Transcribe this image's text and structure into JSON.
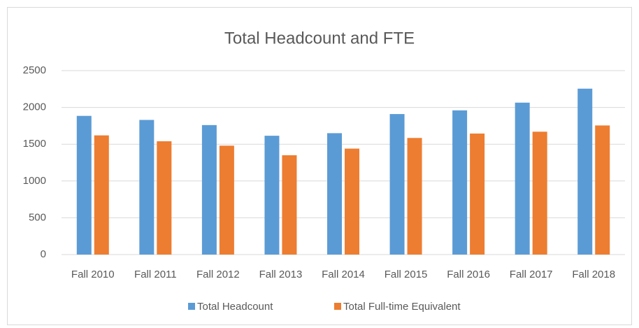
{
  "chart_data": {
    "type": "bar",
    "title": "Total Headcount and FTE",
    "categories": [
      "Fall 2010",
      "Fall 2011",
      "Fall 2012",
      "Fall 2013",
      "Fall 2014",
      "Fall 2015",
      "Fall 2016",
      "Fall 2017",
      "Fall 2018"
    ],
    "series": [
      {
        "name": "Total Headcount",
        "color": "#5b9bd5",
        "values": [
          1885,
          1830,
          1760,
          1615,
          1650,
          1910,
          1960,
          2065,
          2255
        ]
      },
      {
        "name": "Total Full-time Equivalent",
        "color": "#ed7d31",
        "values": [
          1620,
          1540,
          1480,
          1350,
          1440,
          1585,
          1645,
          1670,
          1755
        ]
      }
    ],
    "ylim": [
      0,
      2500
    ],
    "yticks": [
      0,
      500,
      1000,
      1500,
      2000,
      2500
    ],
    "grid": true,
    "legend": "bottom"
  }
}
